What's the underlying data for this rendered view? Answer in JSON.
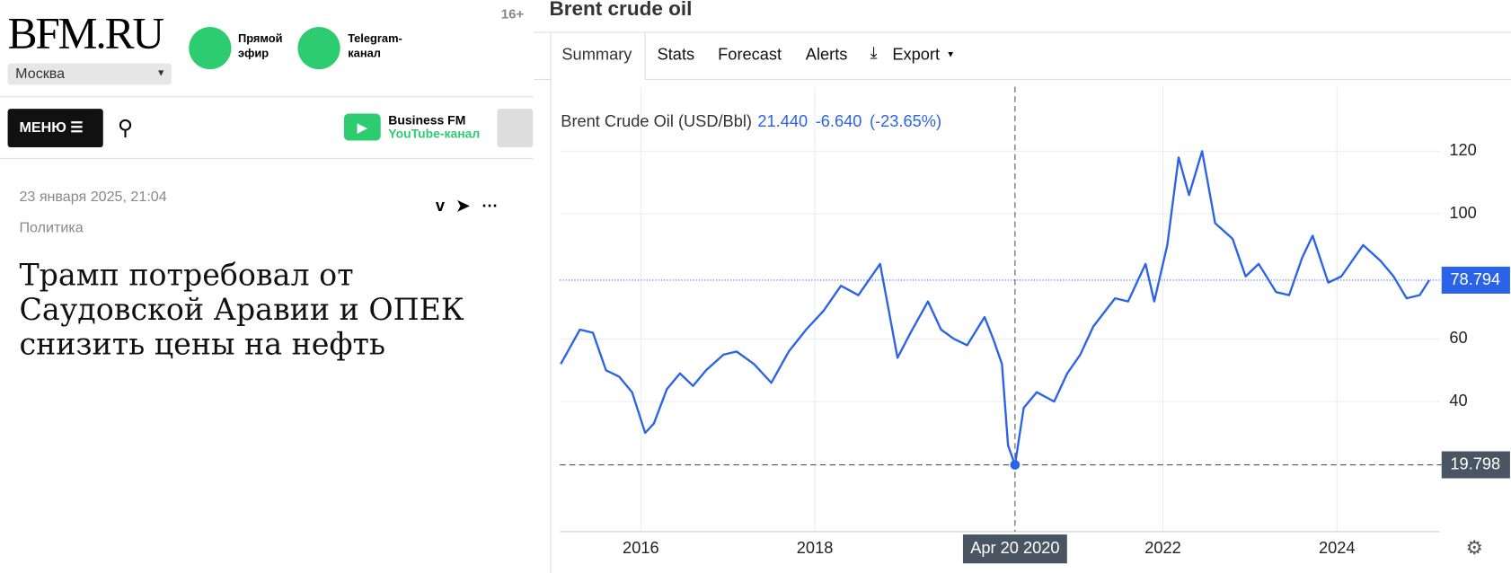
{
  "site": {
    "logo": "BFM.RU",
    "city": "Москва",
    "age": "16+",
    "live": [
      "Прямой",
      "эфир"
    ],
    "telegram": [
      "Telegram-",
      "канал"
    ],
    "menu": "МЕНЮ",
    "youtube_title": "Business FM",
    "youtube_sub": "YouTube-канал"
  },
  "article": {
    "date": "23 января 2025, 21:04",
    "rubric": "Политика",
    "title": "Трамп потребовал от Саудовской Аравии и ОПЕК снизить цены на нефть"
  },
  "panel": {
    "title": "Brent crude oil",
    "tabs": [
      "Summary",
      "Stats",
      "Forecast",
      "Alerts",
      "Export"
    ]
  },
  "chart_data": {
    "type": "line",
    "legend_name": "Brent Crude Oil (USD/Bbl)",
    "readout": [
      {
        "value": 21.44,
        "label": "21.440"
      },
      {
        "value": -6.64,
        "label": "-6.640"
      },
      {
        "value": -23.65,
        "label": "(-23.65%)"
      }
    ],
    "crosshair_label": "Apr 20 2020",
    "x": [
      2015.08,
      2015.3,
      2015.45,
      2015.6,
      2015.75,
      2015.9,
      2016.05,
      2016.15,
      2016.3,
      2016.45,
      2016.6,
      2016.75,
      2016.95,
      2017.1,
      2017.3,
      2017.5,
      2017.7,
      2017.9,
      2018.1,
      2018.3,
      2018.5,
      2018.75,
      2018.95,
      2019.1,
      2019.3,
      2019.45,
      2019.6,
      2019.75,
      2019.95,
      2020.05,
      2020.15,
      2020.22,
      2020.3,
      2020.4,
      2020.55,
      2020.75,
      2020.9,
      2021.05,
      2021.2,
      2021.45,
      2021.6,
      2021.8,
      2021.9,
      2022.05,
      2022.18,
      2022.3,
      2022.45,
      2022.6,
      2022.8,
      2022.95,
      2023.1,
      2023.3,
      2023.45,
      2023.6,
      2023.72,
      2023.9,
      2024.05,
      2024.3,
      2024.5,
      2024.65,
      2024.8,
      2024.95,
      2025.06
    ],
    "series": [
      {
        "name": "Brent Crude Oil",
        "color": "#2b63e8",
        "values": [
          52,
          63,
          62,
          50,
          48,
          43,
          30,
          33,
          44,
          49,
          45,
          50,
          55,
          56,
          52,
          46,
          56,
          63,
          69,
          77,
          74,
          84,
          54,
          62,
          72,
          63,
          60,
          58,
          67,
          60,
          52,
          26,
          19.798,
          38,
          43,
          40,
          49,
          55,
          64,
          73,
          72,
          84,
          72,
          90,
          118,
          106,
          120,
          97,
          92,
          80,
          84,
          75,
          74,
          86,
          93,
          78,
          80,
          90,
          85,
          80,
          73,
          74,
          78.794
        ]
      }
    ],
    "xlim": [
      2015.07,
      2025.18
    ],
    "ylim": [
      0,
      138
    ],
    "xticks": [
      2016,
      2018,
      2022,
      2024
    ],
    "yticks": [
      40,
      60,
      100,
      120
    ],
    "grid": true
  }
}
